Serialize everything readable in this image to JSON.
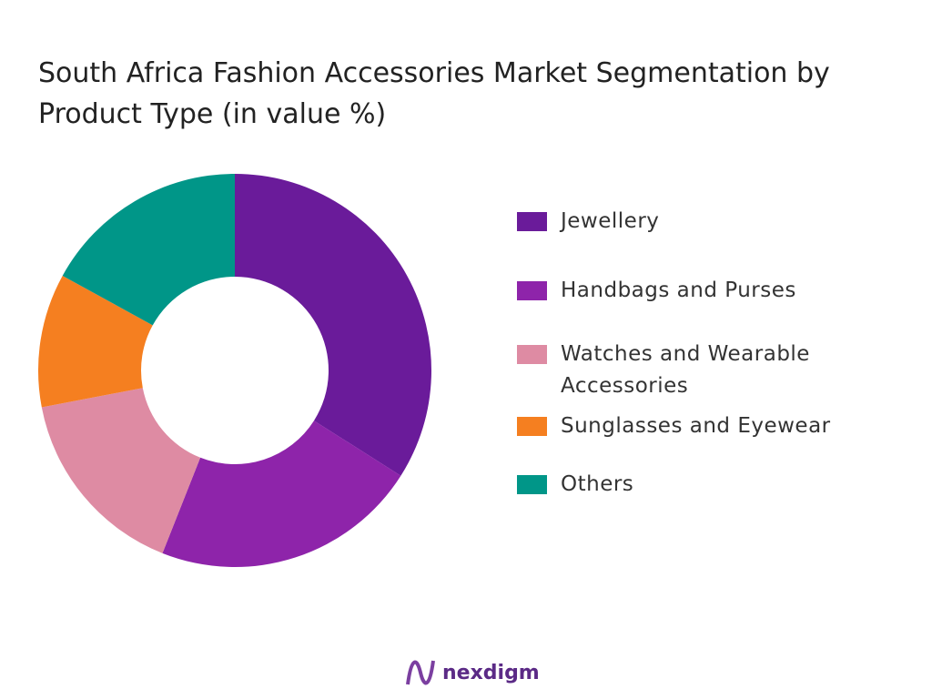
{
  "chart_data": {
    "type": "donut",
    "title": "South Africa Fashion Accessories Market Segmentation by Product Type (in value %)",
    "categories": [
      "Jewellery",
      "Handbags and Purses",
      "Watches and Wearable Accessories",
      "Sunglasses and Eyewear",
      "Others"
    ],
    "values": [
      34,
      22,
      16,
      11,
      17
    ],
    "colors": [
      "#6a1b9a",
      "#8e24aa",
      "#de8ba3",
      "#f57f20",
      "#009688"
    ],
    "legend": "right"
  },
  "logo": "nexdigm"
}
